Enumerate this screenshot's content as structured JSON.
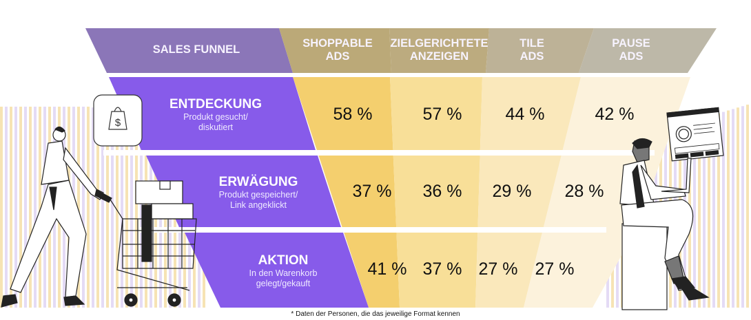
{
  "header": {
    "funnel_label": "SALES FUNNEL",
    "columns": [
      {
        "line1": "SHOPPABLE",
        "line2": "ADS"
      },
      {
        "line1": "ZIELGERICHTETE",
        "line2": "ANZEIGEN"
      },
      {
        "line1": "TILE",
        "line2": "ADS"
      },
      {
        "line1": "PAUSE",
        "line2": "ADS"
      }
    ]
  },
  "stages": [
    {
      "title": "ENTDECKUNG",
      "sub1": "Produkt gesucht/",
      "sub2": "diskutiert",
      "icon": "shopping-bag-dollar-icon"
    },
    {
      "title": "ERWÄGUNG",
      "sub1": "Produkt gespeichert/",
      "sub2": "Link angeklickt"
    },
    {
      "title": "AKTION",
      "sub1": "In den Warenkorb",
      "sub2": "gelegt/gekauft"
    }
  ],
  "footnote": "* Daten der Personen, die das jeweilige Format kennen",
  "colors": {
    "header_purple": "#8b76b8",
    "header_gold": "#bba978",
    "header_gray": "#bdb8a8",
    "stage_purple": "#875bea",
    "col1": "#f4cf6e",
    "col2": "#f8df98",
    "col3": "#fae8bb",
    "col4": "#fcf2dc"
  },
  "chart_data": {
    "type": "table",
    "title": "SALES FUNNEL",
    "categories": [
      "ENTDECKUNG",
      "ERWÄGUNG",
      "AKTION"
    ],
    "series": [
      {
        "name": "SHOPPABLE ADS",
        "values": [
          58,
          37,
          41
        ],
        "labels": [
          "58 %",
          "37 %",
          "41 %"
        ]
      },
      {
        "name": "ZIELGERICHTETE ANZEIGEN",
        "values": [
          57,
          36,
          37
        ],
        "labels": [
          "57 %",
          "36 %",
          "37 %"
        ]
      },
      {
        "name": "TILE ADS",
        "values": [
          44,
          29,
          27
        ],
        "labels": [
          "44 %",
          "29 %",
          "27 %"
        ]
      },
      {
        "name": "PAUSE ADS",
        "values": [
          42,
          28,
          27
        ],
        "labels": [
          "42 %",
          "28 %",
          "27 %"
        ]
      }
    ],
    "unit": "%",
    "note": "* Daten der Personen, die das jeweilige Format kennen"
  }
}
